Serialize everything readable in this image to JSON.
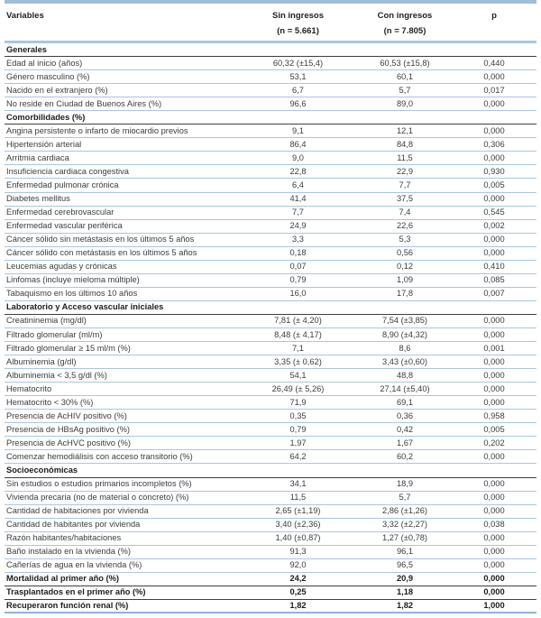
{
  "colors": {
    "divider_blue": "#a9c6e0",
    "top_border_blue": "#a2bdd6",
    "header_underline_blue": "#a9c6e0",
    "bottom_border_blue": "#8fb4d4",
    "section_dark_line": "#3f3f3f",
    "body_text": "#3c3c3c",
    "bold_text": "#1c1c1c"
  },
  "table": {
    "columns": {
      "variables": "Variables",
      "col1_label": "Sin ingresos",
      "col1_n": "(n = 5.661)",
      "col2_label": "Con ingresos",
      "col2_n": "(n = 7.805)",
      "p_label": "p"
    },
    "rows": [
      {
        "type": "section",
        "label": "Generales",
        "sin": "",
        "con": "",
        "p": ""
      },
      {
        "type": "data",
        "label": "Edad al inicio (años)",
        "sin": "60,32 (±15,4)",
        "con": "60,53 (±15,8)",
        "p": "0,440"
      },
      {
        "type": "data",
        "label": "Género masculino (%)",
        "sin": "53,1",
        "con": "60,1",
        "p": "0,000"
      },
      {
        "type": "data",
        "label": "Nacido en el extranjero (%)",
        "sin": "6,7",
        "con": "5,7",
        "p": "0,017"
      },
      {
        "type": "data",
        "label": "No reside en Ciudad de Buenos Aires (%)",
        "sin": "96,6",
        "con": "89,0",
        "p": "0,000"
      },
      {
        "type": "section",
        "label": "Comorbilidades (%)",
        "sin": "",
        "con": "",
        "p": ""
      },
      {
        "type": "data",
        "label": "Angina persistente o infarto de miocardio previos",
        "sin": "9,1",
        "con": "12,1",
        "p": "0,000"
      },
      {
        "type": "data",
        "label": "Hipertensión arterial",
        "sin": "86,4",
        "con": "84,8",
        "p": "0,306"
      },
      {
        "type": "data",
        "label": "Arritmia cardiaca",
        "sin": "9,0",
        "con": "11,5",
        "p": "0,000"
      },
      {
        "type": "data",
        "label": "Insuficiencia cardiaca congestiva",
        "sin": "22,8",
        "con": "22,9",
        "p": "0,930"
      },
      {
        "type": "data",
        "label": "Enfermedad pulmonar crónica",
        "sin": "6,4",
        "con": "7,7",
        "p": "0,005"
      },
      {
        "type": "data",
        "label": "Diabetes mellitus",
        "sin": "41,4",
        "con": "37,5",
        "p": "0,000"
      },
      {
        "type": "data",
        "label": "Enfermedad cerebrovascular",
        "sin": "7,7",
        "con": "7,4",
        "p": "0,545"
      },
      {
        "type": "data",
        "label": "Enfermedad vascular periférica",
        "sin": "24,9",
        "con": "22,6",
        "p": "0,002"
      },
      {
        "type": "data",
        "label": "Cáncer sólido sin metástasis en los últimos 5 años",
        "sin": "3,3",
        "con": "5,3",
        "p": "0,000"
      },
      {
        "type": "data",
        "label": "Cáncer sólido con metástasis en los últimos 5 años",
        "sin": "0,18",
        "con": "0,56",
        "p": "0,000"
      },
      {
        "type": "data",
        "label": "Leucemias agudas y crónicas",
        "sin": "0,07",
        "con": "0,12",
        "p": "0,410"
      },
      {
        "type": "data",
        "label": "Linfomas (incluye mieloma múltiple)",
        "sin": "0,79",
        "con": "1,09",
        "p": "0,085"
      },
      {
        "type": "data",
        "label": "Tabaquismo en los últimos 10 años",
        "sin": "16,0",
        "con": "17,8",
        "p": "0,007"
      },
      {
        "type": "section",
        "label": "Laboratorio y Acceso vascular iniciales",
        "sin": "",
        "con": "",
        "p": ""
      },
      {
        "type": "data",
        "label": "Creatininemia (mg/dl)",
        "sin": "7,81 (± 4,20)",
        "con": "7,54 (±3,85)",
        "p": "0,000"
      },
      {
        "type": "data",
        "label": "Filtrado glomerular (ml/m)",
        "sin": "8,48 (± 4,17)",
        "con": "8,90 (±4,32)",
        "p": "0,000"
      },
      {
        "type": "data",
        "label": "Filtrado glomerular ≥ 15 ml/m (%)",
        "sin": "7,1",
        "con": "8,6",
        "p": "0,001"
      },
      {
        "type": "data",
        "label": "Albuminemia (g/dl)",
        "sin": "3,35 (± 0,62)",
        "con": "3,43 (±0,60)",
        "p": "0,000"
      },
      {
        "type": "data",
        "label": "Albuminemia < 3,5 g/dl (%)",
        "sin": "54,1",
        "con": "48,8",
        "p": "0,000"
      },
      {
        "type": "data",
        "label": "Hematocrito",
        "sin": "26,49 (± 5,26)",
        "con": "27,14 (±5,40)",
        "p": "0,000"
      },
      {
        "type": "data",
        "label": "Hematocrito < 30% (%)",
        "sin": "71,9",
        "con": "69,1",
        "p": "0,000"
      },
      {
        "type": "data",
        "label": "Presencia de AcHIV positivo (%)",
        "sin": "0,35",
        "con": "0,36",
        "p": "0,958"
      },
      {
        "type": "data",
        "label": "Presencia de HBsAg positivo (%)",
        "sin": "0,79",
        "con": "0,42",
        "p": "0,005"
      },
      {
        "type": "data",
        "label": "Presencia de AcHVC positivo (%)",
        "sin": "1,97",
        "con": "1,67",
        "p": "0,202"
      },
      {
        "type": "data",
        "label": "Comenzar hemodiálisis con acceso transitorio (%)",
        "sin": "64,2",
        "con": "60,2",
        "p": "0,000"
      },
      {
        "type": "section",
        "label": "Socioeconómicas",
        "sin": "",
        "con": "",
        "p": ""
      },
      {
        "type": "data",
        "label": "Sin estudios o estudios primarios incompletos (%)",
        "sin": "34,1",
        "con": "18,9",
        "p": "0,000"
      },
      {
        "type": "data",
        "label": "Vivienda precaria (no de material o concreto) (%)",
        "sin": "11,5",
        "con": "5,7",
        "p": "0,000"
      },
      {
        "type": "data",
        "label": "Cantidad de habitaciones por vivienda",
        "sin": "2,65 (±1,19)",
        "con": "2,86 (±1,26)",
        "p": "0,000"
      },
      {
        "type": "data",
        "label": "Cantidad de habitantes por vivienda",
        "sin": "3,40 (±2,36)",
        "con": "3,32 (±2,27)",
        "p": "0,038"
      },
      {
        "type": "data",
        "label": "Razón habitantes/habitaciones",
        "sin": "1,40 (±0,87)",
        "con": "1,27 (±0,78)",
        "p": "0,000"
      },
      {
        "type": "data",
        "label": "Baño instalado en la vivienda (%)",
        "sin": "91,3",
        "con": "96,1",
        "p": "0,000"
      },
      {
        "type": "data",
        "label": "Cañerías de agua en la vivienda (%)",
        "sin": "92,0",
        "con": "96,5",
        "p": "0,000"
      },
      {
        "type": "bold",
        "label": "Mortalidad al primer año (%)",
        "sin": "24,2",
        "con": "20,9",
        "p": "0,000"
      },
      {
        "type": "bold",
        "label": "Trasplantados en el primer año (%)",
        "sin": "0,25",
        "con": "1,18",
        "p": "0,000"
      },
      {
        "type": "bold",
        "label": "Recuperaron función renal (%)",
        "sin": "1,82",
        "con": "1,82",
        "p": "1,000"
      }
    ]
  }
}
